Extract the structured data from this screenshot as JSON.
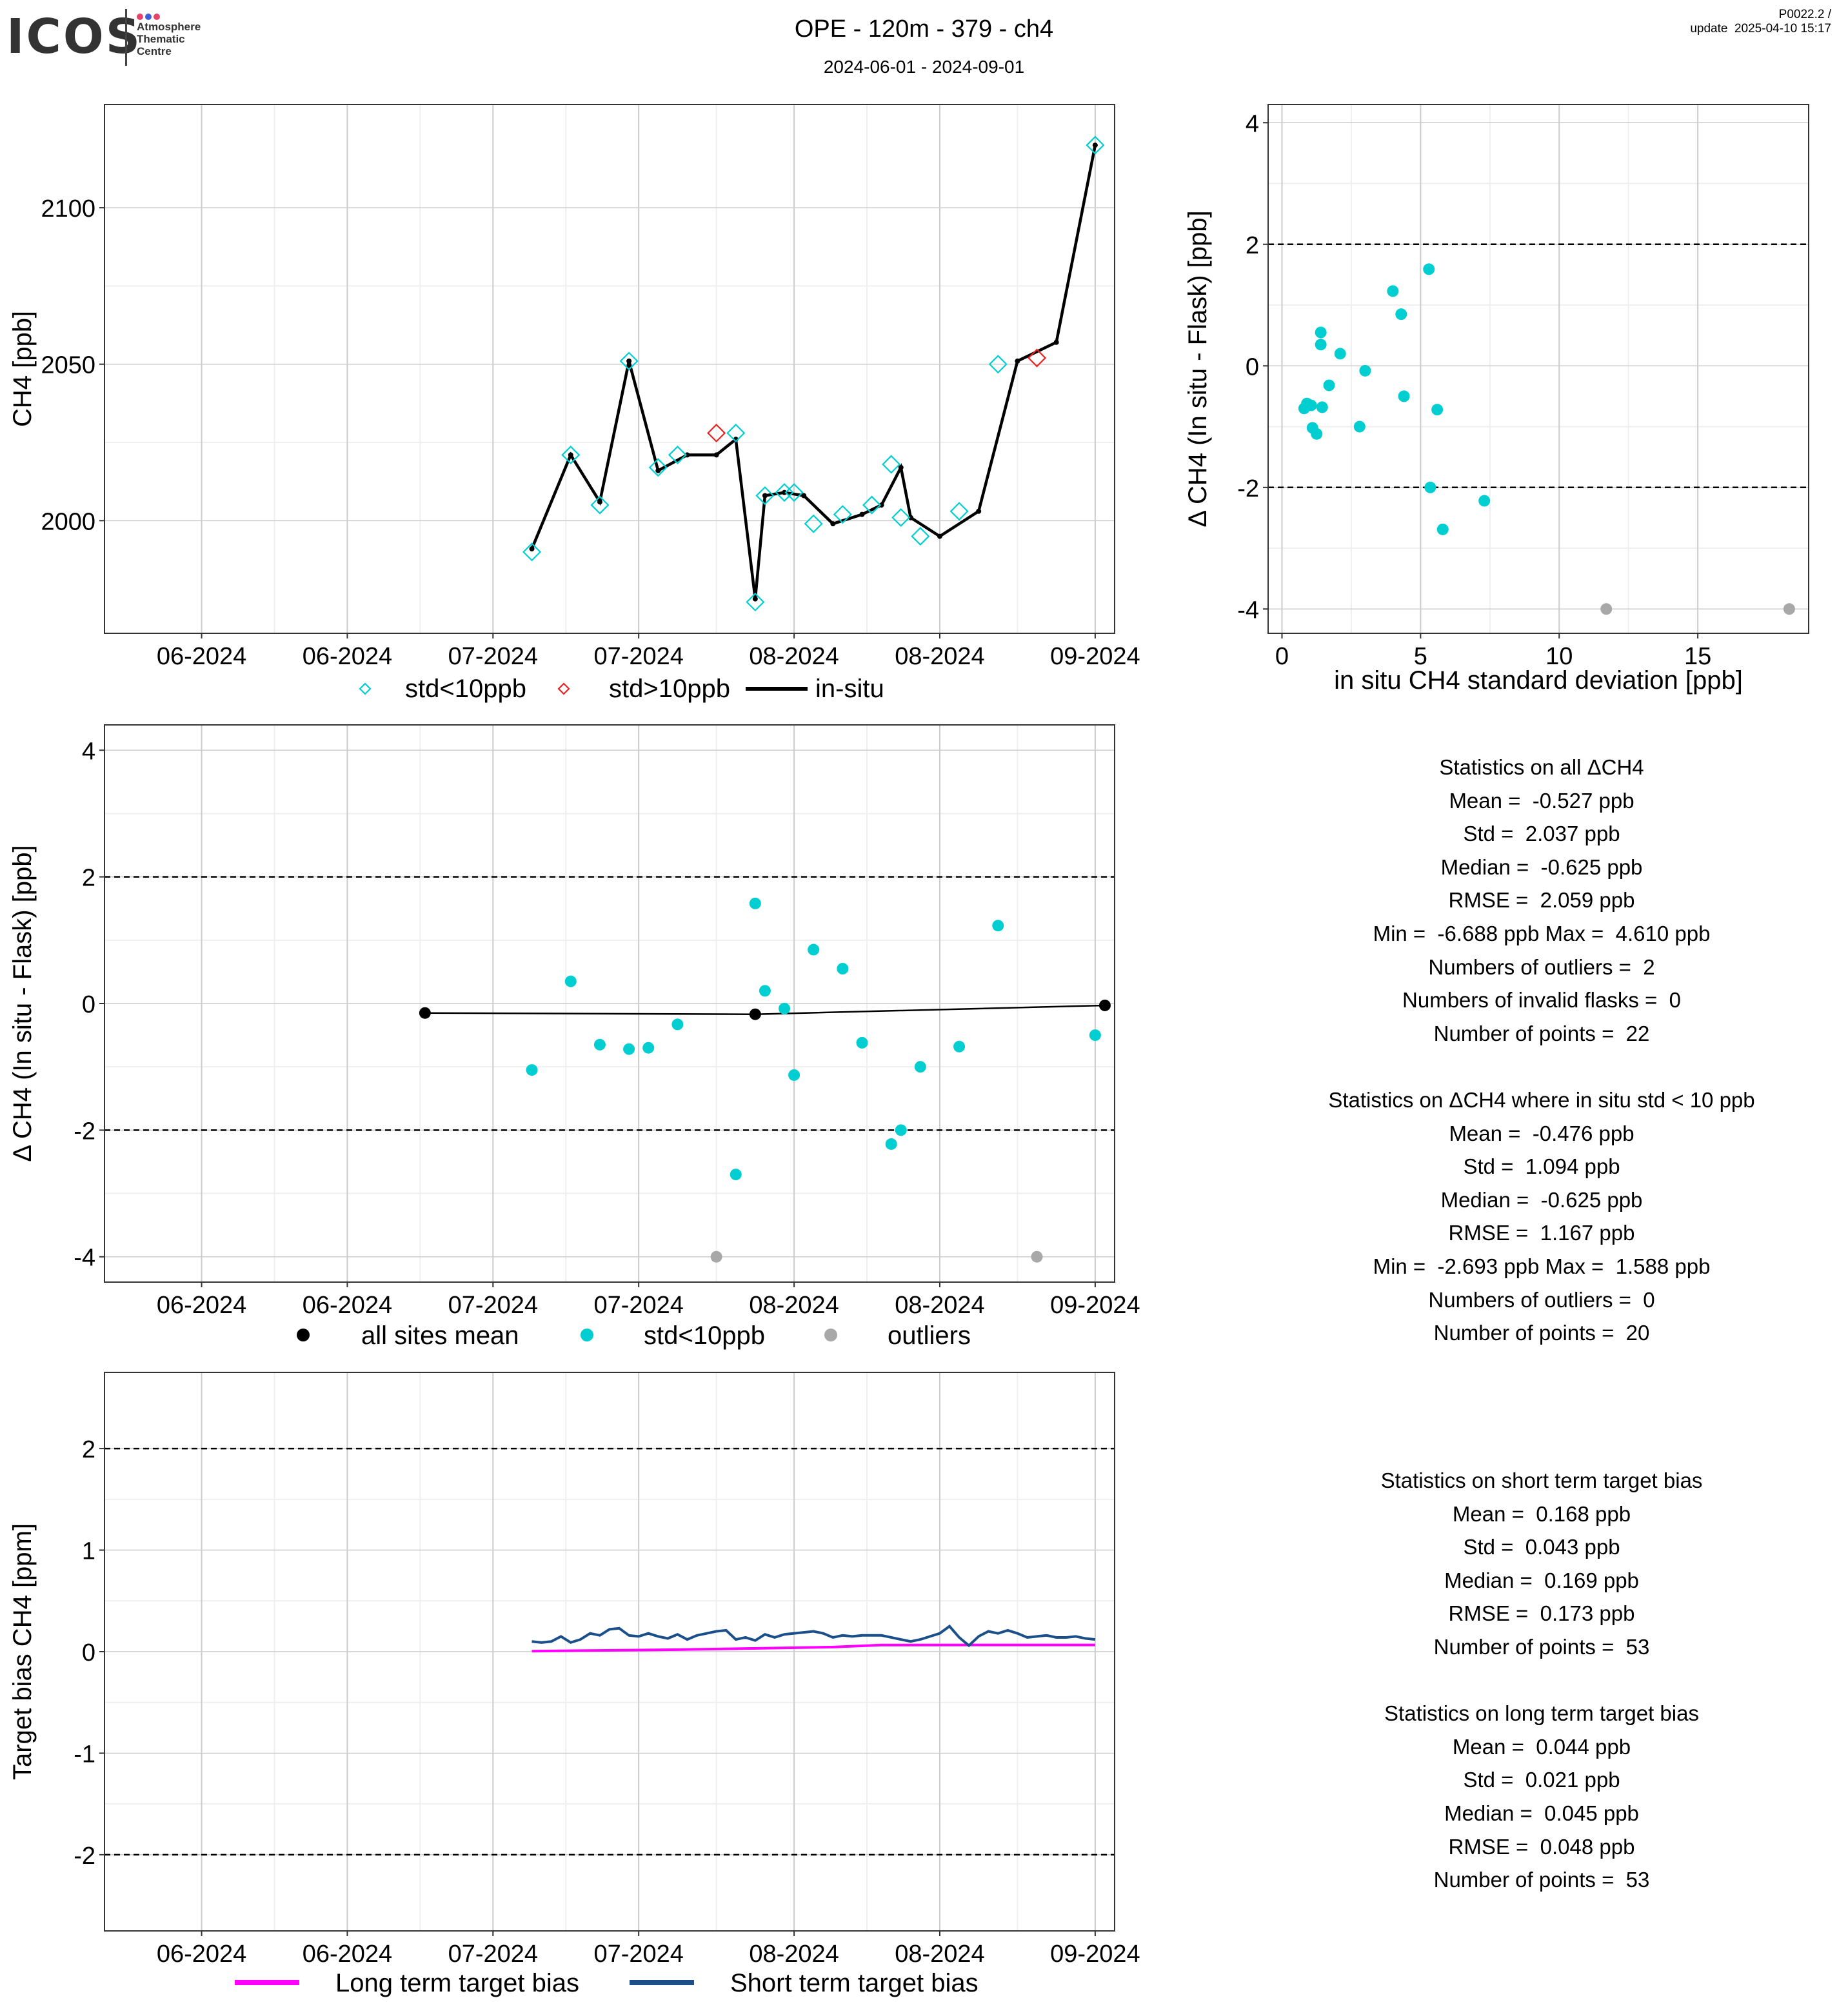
{
  "header": {
    "logo_text": "ICOS",
    "logo_sub": [
      "Atmosphere",
      "Thematic",
      "Centre"
    ],
    "title": "OPE - 120m - 379 - ch4",
    "subtitle": "2024-06-01 - 2024-09-01",
    "version": "P0022.2 /",
    "update": "update  2025-04-10 15:17"
  },
  "colors": {
    "cyan": "#00CED1",
    "red": "#E8231F",
    "grey": "#A8A8A8",
    "black": "#000000",
    "magenta": "#FF00FF",
    "navy": "#1B4F8A",
    "grid_major": "#CCCCCC",
    "grid_minor": "#EFEFEF"
  },
  "chart_data": [
    {
      "id": "timeseries",
      "type": "line",
      "xlabel": "",
      "ylabel": "CH4 [ppb]",
      "xlim": [
        "2024-05-22",
        "2024-09-03"
      ],
      "ylim": [
        1964,
        2133
      ],
      "yticks": [
        2000,
        2050,
        2100
      ],
      "xticks": [
        {
          "date": "2024-06-01",
          "label": "06-2024"
        },
        {
          "date": "2024-06-16",
          "label": "06-2024"
        },
        {
          "date": "2024-07-01",
          "label": "07-2024"
        },
        {
          "date": "2024-07-16",
          "label": "07-2024"
        },
        {
          "date": "2024-08-01",
          "label": "08-2024"
        },
        {
          "date": "2024-08-16",
          "label": "08-2024"
        },
        {
          "date": "2024-09-01",
          "label": "09-2024"
        }
      ],
      "legend": [
        "std<10ppb",
        "std>10ppb",
        "in-situ"
      ],
      "insitu": [
        [
          "2024-07-05",
          1991
        ],
        [
          "2024-07-09",
          2021
        ],
        [
          "2024-07-12",
          2006
        ],
        [
          "2024-07-15",
          2051
        ],
        [
          "2024-07-18",
          2016
        ],
        [
          "2024-07-21",
          2021
        ],
        [
          "2024-07-24",
          2021
        ],
        [
          "2024-07-26",
          2026
        ],
        [
          "2024-07-28",
          1975
        ],
        [
          "2024-07-29",
          2008
        ],
        [
          "2024-07-31",
          2009
        ],
        [
          "2024-08-02",
          2008
        ],
        [
          "2024-08-05",
          1999
        ],
        [
          "2024-08-08",
          2002
        ],
        [
          "2024-08-10",
          2005
        ],
        [
          "2024-08-12",
          2017
        ],
        [
          "2024-08-13",
          2001
        ],
        [
          "2024-08-16",
          1995
        ],
        [
          "2024-08-20",
          2003
        ],
        [
          "2024-08-24",
          2051
        ],
        [
          "2024-08-28",
          2057
        ],
        [
          "2024-09-01",
          2120
        ]
      ],
      "flask_ok": [
        [
          "2024-07-05",
          1990
        ],
        [
          "2024-07-09",
          2021
        ],
        [
          "2024-07-12",
          2005
        ],
        [
          "2024-07-15",
          2051
        ],
        [
          "2024-07-18",
          2017
        ],
        [
          "2024-07-20",
          2021
        ],
        [
          "2024-07-26",
          2028
        ],
        [
          "2024-07-28",
          1974
        ],
        [
          "2024-07-29",
          2008
        ],
        [
          "2024-07-31",
          2009
        ],
        [
          "2024-08-01",
          2009
        ],
        [
          "2024-08-03",
          1999
        ],
        [
          "2024-08-06",
          2002
        ],
        [
          "2024-08-09",
          2005
        ],
        [
          "2024-08-11",
          2018
        ],
        [
          "2024-08-12",
          2001
        ],
        [
          "2024-08-14",
          1995
        ],
        [
          "2024-08-18",
          2003
        ],
        [
          "2024-08-22",
          2050
        ],
        [
          "2024-09-01",
          2120
        ]
      ],
      "flask_bad": [
        [
          "2024-07-24",
          2028
        ],
        [
          "2024-08-26",
          2052
        ]
      ]
    },
    {
      "id": "delta-vs-std",
      "type": "scatter",
      "xlabel": "in situ CH4 standard deviation [ppb]",
      "ylabel": "Δ CH4 (In situ - Flask) [ppb]",
      "xlim": [
        -0.5,
        19
      ],
      "ylim": [
        -4.4,
        4.3
      ],
      "xticks": [
        0,
        5,
        10,
        15
      ],
      "yticks": [
        -4,
        -2,
        0,
        2,
        4
      ],
      "hlines": [
        2,
        -2
      ],
      "points_ok": [
        [
          0.8,
          -0.7
        ],
        [
          0.9,
          -0.62
        ],
        [
          1.05,
          -0.65
        ],
        [
          1.1,
          -1.02
        ],
        [
          1.25,
          -1.12
        ],
        [
          1.4,
          0.55
        ],
        [
          1.4,
          0.35
        ],
        [
          1.45,
          -0.68
        ],
        [
          1.7,
          -0.32
        ],
        [
          2.1,
          0.2
        ],
        [
          2.8,
          -1.0
        ],
        [
          3.0,
          -0.08
        ],
        [
          4.0,
          1.23
        ],
        [
          4.3,
          0.85
        ],
        [
          4.4,
          -0.5
        ],
        [
          5.3,
          1.59
        ],
        [
          5.35,
          -2.0
        ],
        [
          5.6,
          -0.72
        ],
        [
          5.8,
          -2.69
        ],
        [
          7.3,
          -2.22
        ]
      ],
      "points_outlier": [
        [
          11.7,
          -4.0
        ],
        [
          18.3,
          -4.0
        ]
      ]
    },
    {
      "id": "delta-timeseries",
      "type": "scatter",
      "xlabel": "",
      "ylabel": "Δ CH4 (In situ - Flask) [ppb]",
      "xlim": [
        "2024-05-22",
        "2024-09-03"
      ],
      "ylim": [
        -4.4,
        4.4
      ],
      "yticks": [
        -4,
        -2,
        0,
        2,
        4
      ],
      "hlines": [
        2,
        -2
      ],
      "xticks": [
        {
          "date": "2024-06-01",
          "label": "06-2024"
        },
        {
          "date": "2024-06-16",
          "label": "06-2024"
        },
        {
          "date": "2024-07-01",
          "label": "07-2024"
        },
        {
          "date": "2024-07-16",
          "label": "07-2024"
        },
        {
          "date": "2024-08-01",
          "label": "08-2024"
        },
        {
          "date": "2024-08-16",
          "label": "08-2024"
        },
        {
          "date": "2024-09-01",
          "label": "09-2024"
        }
      ],
      "legend": [
        "all sites mean",
        "std<10ppb",
        "outliers"
      ],
      "mean_line": [
        [
          "2024-06-24",
          -0.15
        ],
        [
          "2024-07-28",
          -0.17
        ],
        [
          "2024-09-02",
          -0.03
        ]
      ],
      "points_ok": [
        [
          "2024-07-05",
          -1.05
        ],
        [
          "2024-07-09",
          0.35
        ],
        [
          "2024-07-12",
          -0.65
        ],
        [
          "2024-07-15",
          -0.72
        ],
        [
          "2024-07-17",
          -0.7
        ],
        [
          "2024-07-20",
          -0.33
        ],
        [
          "2024-07-26",
          -2.7
        ],
        [
          "2024-07-28",
          1.58
        ],
        [
          "2024-07-29",
          0.2
        ],
        [
          "2024-07-31",
          -0.08
        ],
        [
          "2024-08-01",
          -1.13
        ],
        [
          "2024-08-03",
          0.85
        ],
        [
          "2024-08-06",
          0.55
        ],
        [
          "2024-08-08",
          -0.62
        ],
        [
          "2024-08-11",
          -2.22
        ],
        [
          "2024-08-12",
          -2.0
        ],
        [
          "2024-08-14",
          -1.0
        ],
        [
          "2024-08-18",
          -0.68
        ],
        [
          "2024-08-22",
          1.23
        ],
        [
          "2024-09-01",
          -0.5
        ]
      ],
      "points_outlier": [
        [
          "2024-07-24",
          -4.0
        ],
        [
          "2024-08-26",
          -4.0
        ]
      ]
    },
    {
      "id": "target-bias",
      "type": "line",
      "xlabel": "",
      "ylabel": "Target bias CH4 [ppm]",
      "xlim": [
        "2024-05-22",
        "2024-09-03"
      ],
      "ylim": [
        -2.75,
        2.75
      ],
      "yticks": [
        -2,
        -1,
        0,
        1,
        2
      ],
      "hlines": [
        2,
        -2
      ],
      "xticks": [
        {
          "date": "2024-06-01",
          "label": "06-2024"
        },
        {
          "date": "2024-06-16",
          "label": "06-2024"
        },
        {
          "date": "2024-07-01",
          "label": "07-2024"
        },
        {
          "date": "2024-07-16",
          "label": "07-2024"
        },
        {
          "date": "2024-08-01",
          "label": "08-2024"
        },
        {
          "date": "2024-08-16",
          "label": "08-2024"
        },
        {
          "date": "2024-09-01",
          "label": "09-2024"
        }
      ],
      "legend": [
        "Long term target bias",
        "Short term target bias"
      ],
      "series": [
        {
          "name": "Long term target bias",
          "values": [
            [
              "2024-07-05",
              0.005
            ],
            [
              "2024-07-20",
              0.02
            ],
            [
              "2024-08-05",
              0.045
            ],
            [
              "2024-08-10",
              0.065
            ],
            [
              "2024-08-20",
              0.066
            ],
            [
              "2024-09-01",
              0.066
            ]
          ]
        },
        {
          "name": "Short term target bias",
          "values": [
            [
              "2024-07-05",
              0.1
            ],
            [
              "2024-07-06",
              0.09
            ],
            [
              "2024-07-07",
              0.1
            ],
            [
              "2024-07-08",
              0.15
            ],
            [
              "2024-07-09",
              0.09
            ],
            [
              "2024-07-10",
              0.12
            ],
            [
              "2024-07-11",
              0.18
            ],
            [
              "2024-07-12",
              0.16
            ],
            [
              "2024-07-13",
              0.22
            ],
            [
              "2024-07-14",
              0.23
            ],
            [
              "2024-07-15",
              0.16
            ],
            [
              "2024-07-16",
              0.15
            ],
            [
              "2024-07-17",
              0.18
            ],
            [
              "2024-07-18",
              0.15
            ],
            [
              "2024-07-19",
              0.13
            ],
            [
              "2024-07-20",
              0.17
            ],
            [
              "2024-07-21",
              0.12
            ],
            [
              "2024-07-22",
              0.16
            ],
            [
              "2024-07-23",
              0.18
            ],
            [
              "2024-07-24",
              0.2
            ],
            [
              "2024-07-25",
              0.21
            ],
            [
              "2024-07-26",
              0.12
            ],
            [
              "2024-07-27",
              0.14
            ],
            [
              "2024-07-28",
              0.11
            ],
            [
              "2024-07-29",
              0.17
            ],
            [
              "2024-07-30",
              0.14
            ],
            [
              "2024-07-31",
              0.17
            ],
            [
              "2024-08-01",
              0.18
            ],
            [
              "2024-08-02",
              0.19
            ],
            [
              "2024-08-03",
              0.2
            ],
            [
              "2024-08-04",
              0.18
            ],
            [
              "2024-08-05",
              0.14
            ],
            [
              "2024-08-06",
              0.16
            ],
            [
              "2024-08-07",
              0.15
            ],
            [
              "2024-08-08",
              0.16
            ],
            [
              "2024-08-09",
              0.16
            ],
            [
              "2024-08-10",
              0.16
            ],
            [
              "2024-08-11",
              0.14
            ],
            [
              "2024-08-12",
              0.12
            ],
            [
              "2024-08-13",
              0.1
            ],
            [
              "2024-08-14",
              0.12
            ],
            [
              "2024-08-15",
              0.15
            ],
            [
              "2024-08-16",
              0.18
            ],
            [
              "2024-08-17",
              0.25
            ],
            [
              "2024-08-18",
              0.14
            ],
            [
              "2024-08-19",
              0.06
            ],
            [
              "2024-08-20",
              0.15
            ],
            [
              "2024-08-21",
              0.2
            ],
            [
              "2024-08-22",
              0.18
            ],
            [
              "2024-08-23",
              0.21
            ],
            [
              "2024-08-24",
              0.18
            ],
            [
              "2024-08-25",
              0.14
            ],
            [
              "2024-08-26",
              0.15
            ],
            [
              "2024-08-27",
              0.16
            ],
            [
              "2024-08-28",
              0.14
            ],
            [
              "2024-08-29",
              0.14
            ],
            [
              "2024-08-30",
              0.15
            ],
            [
              "2024-08-31",
              0.13
            ],
            [
              "2024-09-01",
              0.12
            ]
          ]
        }
      ]
    }
  ],
  "stats_delta": [
    "Statistics on all ΔCH4",
    "Mean =  -0.527 ppb",
    "Std =  2.037 ppb",
    "Median =  -0.625 ppb",
    "RMSE =  2.059 ppb",
    "Min =  -6.688 ppb Max =  4.610 ppb",
    "Numbers of outliers =  2",
    "Numbers of invalid flasks =  0",
    "Number of points =  22",
    "",
    "Statistics on ΔCH4 where in situ std < 10 ppb",
    "Mean =  -0.476 ppb",
    "Std =  1.094 ppb",
    "Median =  -0.625 ppb",
    "RMSE =  1.167 ppb",
    "Min =  -2.693 ppb Max =  1.588 ppb",
    "Numbers of outliers =  0",
    "Number of points =  20"
  ],
  "stats_target": [
    "Statistics on short term target bias",
    "Mean =  0.168 ppb",
    "Std =  0.043 ppb",
    "Median =  0.169 ppb",
    "RMSE =  0.173 ppb",
    "Number of points =  53",
    "",
    "Statistics on long term target bias",
    "Mean =  0.044 ppb",
    "Std =  0.021 ppb",
    "Median =  0.045 ppb",
    "RMSE =  0.048 ppb",
    "Number of points =  53"
  ]
}
